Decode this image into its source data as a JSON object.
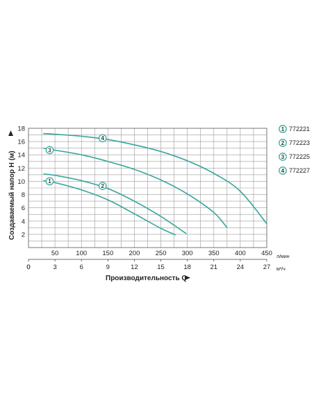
{
  "chart_data": {
    "type": "line",
    "xlabel": "Производительность Q",
    "ylabel": "Создаваемый напор H (м)",
    "x_unit_primary": "л/мин",
    "x_unit_secondary": "м³/ч",
    "xlim": [
      0,
      450
    ],
    "ylim": [
      0,
      18
    ],
    "grid": true,
    "legend_position": "right",
    "x_ticks_primary": [
      0,
      50,
      100,
      150,
      200,
      250,
      300,
      350,
      400,
      450
    ],
    "x_ticks_secondary": [
      0,
      3,
      6,
      9,
      12,
      15,
      18,
      21,
      24,
      27
    ],
    "y_ticks": [
      2,
      4,
      6,
      8,
      10,
      12,
      14,
      16,
      18
    ],
    "line_color": "#3fa8a0",
    "series": [
      {
        "name": "772221",
        "marker": "1",
        "marker_at": [
          40,
          10.0
        ],
        "x": [
          28,
          50,
          100,
          150,
          200,
          250,
          278
        ],
        "y": [
          10.1,
          9.8,
          8.7,
          7.2,
          5.1,
          2.9,
          1.9
        ]
      },
      {
        "name": "772223",
        "marker": "2",
        "marker_at": [
          140,
          9.3
        ],
        "x": [
          28,
          50,
          100,
          150,
          200,
          250,
          298
        ],
        "y": [
          11.1,
          10.9,
          10.1,
          8.9,
          7.0,
          4.7,
          2.1
        ]
      },
      {
        "name": "772225",
        "marker": "3",
        "marker_at": [
          40,
          14.7
        ],
        "x": [
          28,
          50,
          100,
          150,
          200,
          250,
          300,
          350,
          375
        ],
        "y": [
          15.0,
          14.7,
          14.0,
          13.0,
          11.8,
          10.2,
          8.1,
          5.3,
          3.0
        ]
      },
      {
        "name": "772227",
        "marker": "4",
        "marker_at": [
          140,
          16.5
        ],
        "x": [
          28,
          50,
          100,
          150,
          200,
          250,
          300,
          350,
          400,
          450
        ],
        "y": [
          17.2,
          17.1,
          16.8,
          16.3,
          15.5,
          14.5,
          13.1,
          11.2,
          8.5,
          3.6
        ]
      }
    ]
  }
}
